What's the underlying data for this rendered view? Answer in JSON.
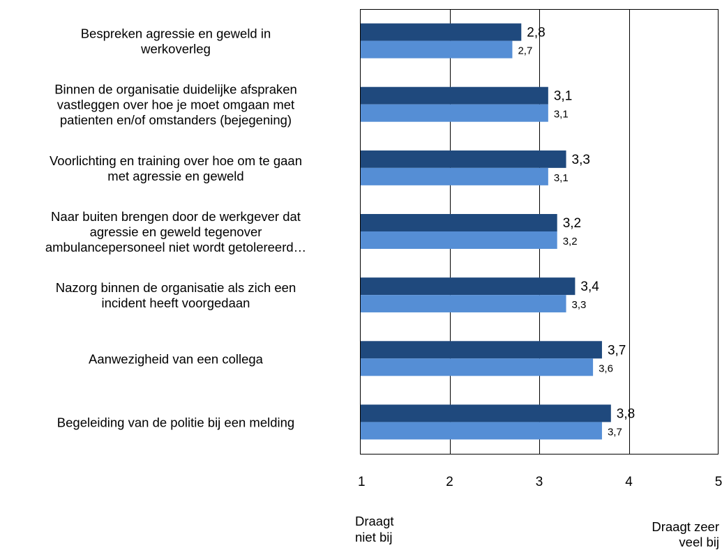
{
  "chart_data": {
    "type": "bar",
    "orientation": "horizontal",
    "categories": [
      [
        "Bespreken agressie en geweld in",
        "werkoverleg"
      ],
      [
        "Binnen de organisatie duidelijke afspraken",
        "vastleggen over hoe je moet omgaan met",
        "patienten en/of omstanders (bejegening)"
      ],
      [
        "Voorlichting en training over hoe om te gaan",
        "met agressie en geweld"
      ],
      [
        "Naar buiten brengen door de werkgever dat",
        "agressie en geweld tegenover",
        "ambulancepersoneel niet wordt getolereerd…"
      ],
      [
        "Nazorg binnen de organisatie als zich een",
        "incident heeft voorgedaan"
      ],
      [
        "Aanwezigheid van een collega"
      ],
      [
        "Begeleiding van de politie bij een melding"
      ]
    ],
    "series": [
      {
        "values": [
          2.8,
          3.1,
          3.3,
          3.2,
          3.4,
          3.7,
          3.8
        ],
        "labels": [
          "2,8",
          "3,1",
          "3,3",
          "3,2",
          "3,4",
          "3,7",
          "3,8"
        ],
        "color": "#1f497d"
      },
      {
        "values": [
          2.7,
          3.1,
          3.1,
          3.2,
          3.3,
          3.6,
          3.7
        ],
        "labels": [
          "2,7",
          "3,1",
          "3,1",
          "3,2",
          "3,3",
          "3,6",
          "3,7"
        ],
        "color": "#558ed5"
      }
    ],
    "xlim": [
      1,
      5
    ],
    "xticks": [
      1,
      2,
      3,
      4,
      5
    ],
    "xtick_labels": [
      "1",
      "2",
      "3",
      "4",
      "5"
    ],
    "xaxis_low_label": [
      "Draagt",
      "niet bij"
    ],
    "xaxis_high_label": [
      "Draagt zeer",
      "veel bij"
    ],
    "grid": "vertical",
    "legend": "none"
  }
}
